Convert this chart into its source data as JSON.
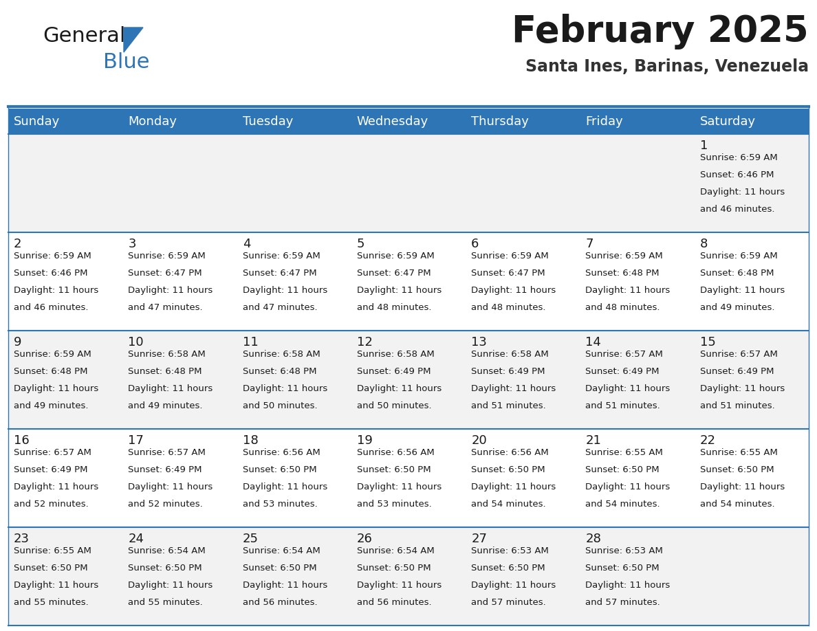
{
  "title": "February 2025",
  "subtitle": "Santa Ines, Barinas, Venezuela",
  "header_bg": "#2E75B6",
  "header_text_color": "#FFFFFF",
  "row_bg_odd": "#F2F2F2",
  "row_bg_even": "#FFFFFF",
  "cell_border_color": "#2E75B6",
  "day_headers": [
    "Sunday",
    "Monday",
    "Tuesday",
    "Wednesday",
    "Thursday",
    "Friday",
    "Saturday"
  ],
  "days": [
    {
      "day": 1,
      "col": 6,
      "row": 0,
      "sunrise": "6:59 AM",
      "sunset": "6:46 PM",
      "daylight_hours": 11,
      "daylight_minutes": 46
    },
    {
      "day": 2,
      "col": 0,
      "row": 1,
      "sunrise": "6:59 AM",
      "sunset": "6:46 PM",
      "daylight_hours": 11,
      "daylight_minutes": 46
    },
    {
      "day": 3,
      "col": 1,
      "row": 1,
      "sunrise": "6:59 AM",
      "sunset": "6:47 PM",
      "daylight_hours": 11,
      "daylight_minutes": 47
    },
    {
      "day": 4,
      "col": 2,
      "row": 1,
      "sunrise": "6:59 AM",
      "sunset": "6:47 PM",
      "daylight_hours": 11,
      "daylight_minutes": 47
    },
    {
      "day": 5,
      "col": 3,
      "row": 1,
      "sunrise": "6:59 AM",
      "sunset": "6:47 PM",
      "daylight_hours": 11,
      "daylight_minutes": 48
    },
    {
      "day": 6,
      "col": 4,
      "row": 1,
      "sunrise": "6:59 AM",
      "sunset": "6:47 PM",
      "daylight_hours": 11,
      "daylight_minutes": 48
    },
    {
      "day": 7,
      "col": 5,
      "row": 1,
      "sunrise": "6:59 AM",
      "sunset": "6:48 PM",
      "daylight_hours": 11,
      "daylight_minutes": 48
    },
    {
      "day": 8,
      "col": 6,
      "row": 1,
      "sunrise": "6:59 AM",
      "sunset": "6:48 PM",
      "daylight_hours": 11,
      "daylight_minutes": 49
    },
    {
      "day": 9,
      "col": 0,
      "row": 2,
      "sunrise": "6:59 AM",
      "sunset": "6:48 PM",
      "daylight_hours": 11,
      "daylight_minutes": 49
    },
    {
      "day": 10,
      "col": 1,
      "row": 2,
      "sunrise": "6:58 AM",
      "sunset": "6:48 PM",
      "daylight_hours": 11,
      "daylight_minutes": 49
    },
    {
      "day": 11,
      "col": 2,
      "row": 2,
      "sunrise": "6:58 AM",
      "sunset": "6:48 PM",
      "daylight_hours": 11,
      "daylight_minutes": 50
    },
    {
      "day": 12,
      "col": 3,
      "row": 2,
      "sunrise": "6:58 AM",
      "sunset": "6:49 PM",
      "daylight_hours": 11,
      "daylight_minutes": 50
    },
    {
      "day": 13,
      "col": 4,
      "row": 2,
      "sunrise": "6:58 AM",
      "sunset": "6:49 PM",
      "daylight_hours": 11,
      "daylight_minutes": 51
    },
    {
      "day": 14,
      "col": 5,
      "row": 2,
      "sunrise": "6:57 AM",
      "sunset": "6:49 PM",
      "daylight_hours": 11,
      "daylight_minutes": 51
    },
    {
      "day": 15,
      "col": 6,
      "row": 2,
      "sunrise": "6:57 AM",
      "sunset": "6:49 PM",
      "daylight_hours": 11,
      "daylight_minutes": 51
    },
    {
      "day": 16,
      "col": 0,
      "row": 3,
      "sunrise": "6:57 AM",
      "sunset": "6:49 PM",
      "daylight_hours": 11,
      "daylight_minutes": 52
    },
    {
      "day": 17,
      "col": 1,
      "row": 3,
      "sunrise": "6:57 AM",
      "sunset": "6:49 PM",
      "daylight_hours": 11,
      "daylight_minutes": 52
    },
    {
      "day": 18,
      "col": 2,
      "row": 3,
      "sunrise": "6:56 AM",
      "sunset": "6:50 PM",
      "daylight_hours": 11,
      "daylight_minutes": 53
    },
    {
      "day": 19,
      "col": 3,
      "row": 3,
      "sunrise": "6:56 AM",
      "sunset": "6:50 PM",
      "daylight_hours": 11,
      "daylight_minutes": 53
    },
    {
      "day": 20,
      "col": 4,
      "row": 3,
      "sunrise": "6:56 AM",
      "sunset": "6:50 PM",
      "daylight_hours": 11,
      "daylight_minutes": 54
    },
    {
      "day": 21,
      "col": 5,
      "row": 3,
      "sunrise": "6:55 AM",
      "sunset": "6:50 PM",
      "daylight_hours": 11,
      "daylight_minutes": 54
    },
    {
      "day": 22,
      "col": 6,
      "row": 3,
      "sunrise": "6:55 AM",
      "sunset": "6:50 PM",
      "daylight_hours": 11,
      "daylight_minutes": 54
    },
    {
      "day": 23,
      "col": 0,
      "row": 4,
      "sunrise": "6:55 AM",
      "sunset": "6:50 PM",
      "daylight_hours": 11,
      "daylight_minutes": 55
    },
    {
      "day": 24,
      "col": 1,
      "row": 4,
      "sunrise": "6:54 AM",
      "sunset": "6:50 PM",
      "daylight_hours": 11,
      "daylight_minutes": 55
    },
    {
      "day": 25,
      "col": 2,
      "row": 4,
      "sunrise": "6:54 AM",
      "sunset": "6:50 PM",
      "daylight_hours": 11,
      "daylight_minutes": 56
    },
    {
      "day": 26,
      "col": 3,
      "row": 4,
      "sunrise": "6:54 AM",
      "sunset": "6:50 PM",
      "daylight_hours": 11,
      "daylight_minutes": 56
    },
    {
      "day": 27,
      "col": 4,
      "row": 4,
      "sunrise": "6:53 AM",
      "sunset": "6:50 PM",
      "daylight_hours": 11,
      "daylight_minutes": 57
    },
    {
      "day": 28,
      "col": 5,
      "row": 4,
      "sunrise": "6:53 AM",
      "sunset": "6:50 PM",
      "daylight_hours": 11,
      "daylight_minutes": 57
    }
  ],
  "num_rows": 5,
  "num_cols": 7,
  "title_fontsize": 38,
  "subtitle_fontsize": 17,
  "header_fontsize": 13,
  "day_number_fontsize": 13,
  "cell_text_fontsize": 9.5
}
